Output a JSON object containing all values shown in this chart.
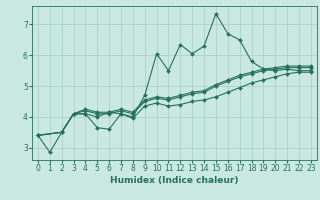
{
  "xlabel": "Humidex (Indice chaleur)",
  "ylabel": "",
  "xlim": [
    -0.5,
    23.5
  ],
  "ylim": [
    2.6,
    7.6
  ],
  "xticks": [
    0,
    1,
    2,
    3,
    4,
    5,
    6,
    7,
    8,
    9,
    10,
    11,
    12,
    13,
    14,
    15,
    16,
    17,
    18,
    19,
    20,
    21,
    22,
    23
  ],
  "yticks": [
    3,
    4,
    5,
    6,
    7
  ],
  "background_color": "#c8e8e0",
  "grid_color": "#a8ccc8",
  "line_color": "#267060",
  "line_width": 0.8,
  "marker": "D",
  "marker_size": 2.0,
  "series": [
    {
      "x": [
        0,
        1,
        2,
        3,
        4,
        5,
        6,
        7,
        8,
        9,
        10,
        11,
        12,
        13,
        14,
        15,
        16,
        17,
        18,
        19,
        20,
        21,
        22,
        23
      ],
      "y": [
        3.4,
        2.85,
        3.5,
        4.1,
        4.1,
        4.0,
        4.15,
        4.1,
        4.0,
        4.7,
        6.05,
        5.5,
        6.35,
        6.05,
        6.3,
        7.35,
        6.7,
        6.5,
        5.8,
        5.55,
        5.5,
        5.55,
        5.5,
        5.5
      ]
    },
    {
      "x": [
        0,
        2,
        3,
        4,
        5,
        6,
        7,
        8,
        9,
        10,
        11,
        12,
        13,
        14,
        15,
        16,
        17,
        18,
        19,
        20,
        21,
        22,
        23
      ],
      "y": [
        3.4,
        3.5,
        4.1,
        4.1,
        3.65,
        3.6,
        4.1,
        3.95,
        4.35,
        4.45,
        4.35,
        4.4,
        4.5,
        4.55,
        4.65,
        4.8,
        4.95,
        5.1,
        5.2,
        5.3,
        5.4,
        5.45,
        5.45
      ]
    },
    {
      "x": [
        0,
        2,
        3,
        4,
        5,
        6,
        7,
        8,
        9,
        10,
        11,
        12,
        13,
        14,
        15,
        16,
        17,
        18,
        19,
        20,
        21,
        22,
        23
      ],
      "y": [
        3.4,
        3.5,
        4.1,
        4.2,
        4.1,
        4.1,
        4.2,
        4.1,
        4.5,
        4.6,
        4.55,
        4.65,
        4.75,
        4.8,
        5.0,
        5.15,
        5.3,
        5.4,
        5.5,
        5.55,
        5.6,
        5.6,
        5.6
      ]
    },
    {
      "x": [
        0,
        2,
        3,
        4,
        5,
        6,
        7,
        8,
        9,
        10,
        11,
        12,
        13,
        14,
        15,
        16,
        17,
        18,
        19,
        20,
        21,
        22,
        23
      ],
      "y": [
        3.4,
        3.5,
        4.1,
        4.25,
        4.15,
        4.15,
        4.25,
        4.15,
        4.55,
        4.65,
        4.6,
        4.7,
        4.8,
        4.85,
        5.05,
        5.2,
        5.35,
        5.45,
        5.55,
        5.6,
        5.65,
        5.65,
        5.65
      ]
    }
  ]
}
